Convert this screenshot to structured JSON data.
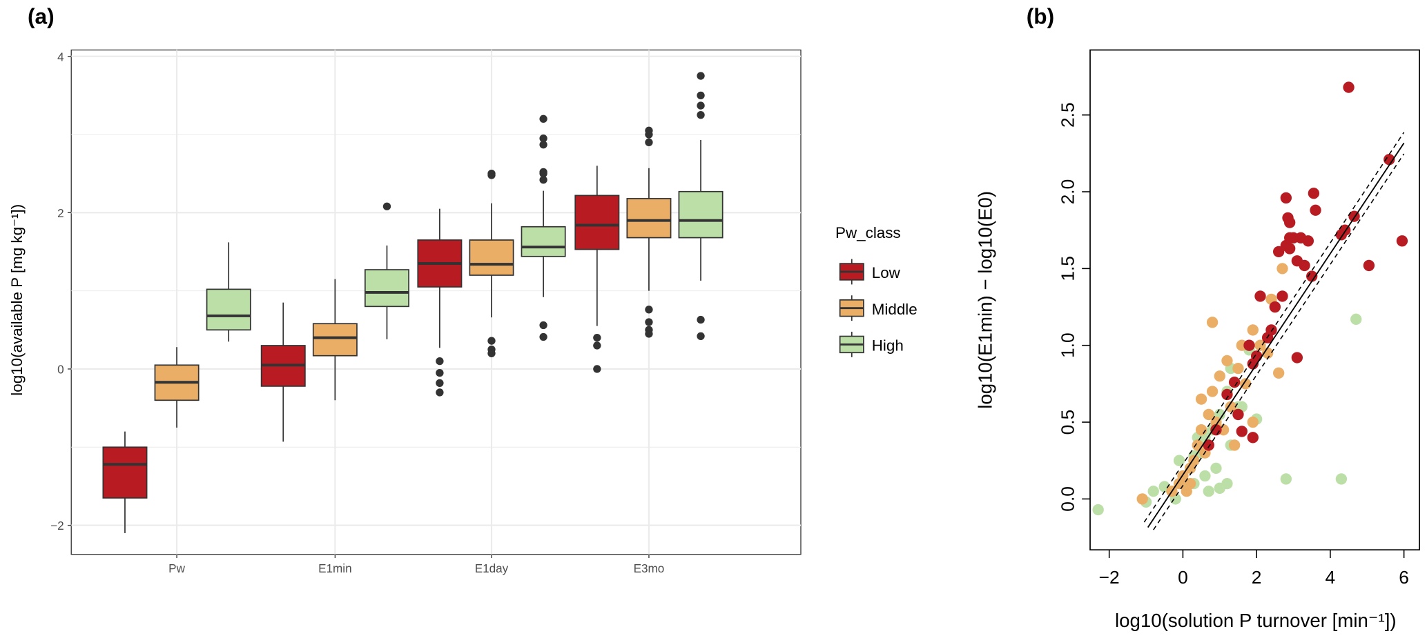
{
  "panel_labels": [
    "(a)",
    "(b)"
  ],
  "colors": {
    "Low": "#b81c22",
    "Middle": "#ebae66",
    "High": "#bbdfa6",
    "outline": "#333333",
    "grid": "#ebebeb"
  },
  "chart_data": [
    {
      "type": "box",
      "title": "(a)",
      "xlabel": "",
      "ylabel": "log10(available P [mg kg⁻¹])",
      "ylim": [
        -2.4,
        4.1
      ],
      "yticks": [
        -2,
        0,
        2,
        4
      ],
      "categories": [
        "Pw",
        "E1min",
        "E1day",
        "E3mo"
      ],
      "legend": {
        "title": "Pw_class",
        "entries": [
          "Low",
          "Middle",
          "High"
        ],
        "position": "right"
      },
      "series": [
        {
          "name": "Low",
          "boxes": [
            {
              "min": -2.1,
              "q1": -1.65,
              "median": -1.22,
              "q3": -1.0,
              "max": -0.8,
              "outliers": []
            },
            {
              "min": -0.93,
              "q1": -0.22,
              "median": 0.05,
              "q3": 0.3,
              "max": 0.85,
              "outliers": []
            },
            {
              "min": 0.27,
              "q1": 1.05,
              "median": 1.35,
              "q3": 1.65,
              "max": 2.05,
              "outliers": [
                0.1,
                -0.05,
                -0.18,
                -0.3
              ]
            },
            {
              "min": 0.55,
              "q1": 1.53,
              "median": 1.84,
              "q3": 2.22,
              "max": 2.6,
              "outliers": [
                0.4,
                0.3,
                0.0
              ]
            }
          ]
        },
        {
          "name": "Middle",
          "boxes": [
            {
              "min": -0.75,
              "q1": -0.4,
              "median": -0.17,
              "q3": 0.05,
              "max": 0.28,
              "outliers": []
            },
            {
              "min": -0.4,
              "q1": 0.17,
              "median": 0.4,
              "q3": 0.58,
              "max": 1.15,
              "outliers": []
            },
            {
              "min": 0.66,
              "q1": 1.2,
              "median": 1.34,
              "q3": 1.65,
              "max": 2.12,
              "outliers": [
                2.5,
                2.48,
                0.36,
                0.25,
                0.2
              ]
            },
            {
              "min": 1.0,
              "q1": 1.68,
              "median": 1.9,
              "q3": 2.18,
              "max": 2.57,
              "outliers": [
                3.05,
                3.0,
                2.9,
                0.76,
                0.6,
                0.5,
                0.45
              ]
            }
          ]
        },
        {
          "name": "High",
          "boxes": [
            {
              "min": 0.35,
              "q1": 0.5,
              "median": 0.68,
              "q3": 1.02,
              "max": 1.62,
              "outliers": []
            },
            {
              "min": 0.38,
              "q1": 0.8,
              "median": 0.98,
              "q3": 1.27,
              "max": 1.58,
              "outliers": [
                2.08
              ]
            },
            {
              "min": 0.92,
              "q1": 1.44,
              "median": 1.56,
              "q3": 1.82,
              "max": 2.28,
              "outliers": [
                3.2,
                2.95,
                2.87,
                2.52,
                2.5,
                2.42,
                0.56,
                0.41
              ]
            },
            {
              "min": 1.13,
              "q1": 1.68,
              "median": 1.9,
              "q3": 2.27,
              "max": 2.93,
              "outliers": [
                3.75,
                3.5,
                3.37,
                3.25,
                0.63,
                0.42
              ]
            }
          ]
        }
      ]
    },
    {
      "type": "scatter",
      "title": "(b)",
      "xlabel": "log10(solution P turnover [min⁻¹])",
      "ylabel": "log10(E1min) − log10(E0)",
      "xlim": [
        -2.4,
        6.4
      ],
      "ylim": [
        -0.16,
        2.95
      ],
      "xticks": [
        "−2",
        "0",
        "2",
        "4",
        "6"
      ],
      "xtick_values": [
        -2,
        0,
        2,
        4,
        6
      ],
      "yticks": [
        "0.0",
        "0.5",
        "1.0",
        "1.5",
        "2.0",
        "2.5"
      ],
      "ytick_values": [
        0,
        0.5,
        1.0,
        1.5,
        2.0,
        2.5
      ],
      "fit": {
        "slope": 0.36,
        "intercept": 0.157,
        "ci_offset": 0.07,
        "x_range": [
          -0.95,
          6.0
        ]
      },
      "series": [
        {
          "name": "High",
          "points": [
            [
              -2.3,
              -0.07
            ],
            [
              -1.0,
              -0.02
            ],
            [
              -0.8,
              0.05
            ],
            [
              -0.5,
              0.08
            ],
            [
              -0.2,
              0.0
            ],
            [
              0.0,
              0.1
            ],
            [
              0.2,
              0.2
            ],
            [
              0.3,
              0.28
            ],
            [
              0.5,
              0.3
            ],
            [
              0.6,
              0.4
            ],
            [
              0.8,
              0.45
            ],
            [
              1.0,
              0.55
            ],
            [
              1.2,
              0.7
            ],
            [
              1.3,
              0.85
            ],
            [
              1.8,
              0.97
            ],
            [
              1.5,
              0.6
            ],
            [
              2.0,
              0.52
            ],
            [
              1.3,
              0.35
            ],
            [
              0.9,
              0.2
            ],
            [
              0.6,
              0.15
            ],
            [
              1.2,
              0.1
            ],
            [
              0.7,
              0.05
            ],
            [
              -0.1,
              0.25
            ],
            [
              2.8,
              0.13
            ],
            [
              4.3,
              0.13
            ],
            [
              4.7,
              1.17
            ],
            [
              1.0,
              0.07
            ],
            [
              0.4,
              0.4
            ],
            [
              1.6,
              0.6
            ],
            [
              0.3,
              0.1
            ]
          ]
        },
        {
          "name": "Middle",
          "points": [
            [
              -1.1,
              0.0
            ],
            [
              2.7,
              1.5
            ],
            [
              2.4,
              1.3
            ],
            [
              2.5,
              1.25
            ],
            [
              0.8,
              1.15
            ],
            [
              1.9,
              1.1
            ],
            [
              1.6,
              1.0
            ],
            [
              2.1,
              1.0
            ],
            [
              1.2,
              0.9
            ],
            [
              1.5,
              0.85
            ],
            [
              2.6,
              0.82
            ],
            [
              1.0,
              0.8
            ],
            [
              0.8,
              0.7
            ],
            [
              1.3,
              0.6
            ],
            [
              0.7,
              0.55
            ],
            [
              0.9,
              0.5
            ],
            [
              0.5,
              0.45
            ],
            [
              1.1,
              0.45
            ],
            [
              0.4,
              0.35
            ],
            [
              0.6,
              0.3
            ],
            [
              0.3,
              0.25
            ],
            [
              0.2,
              0.2
            ],
            [
              0.0,
              0.15
            ],
            [
              -0.1,
              0.1
            ],
            [
              0.1,
              0.05
            ],
            [
              1.9,
              0.5
            ],
            [
              1.4,
              0.35
            ],
            [
              0.5,
              0.65
            ],
            [
              1.7,
              0.75
            ],
            [
              2.3,
              0.95
            ],
            [
              -0.3,
              0.05
            ],
            [
              0.2,
              0.1
            ]
          ]
        },
        {
          "name": "Low",
          "points": [
            [
              4.5,
              2.68
            ],
            [
              5.6,
              2.21
            ],
            [
              5.95,
              1.68
            ],
            [
              5.05,
              1.52
            ],
            [
              4.65,
              1.84
            ],
            [
              4.3,
              1.72
            ],
            [
              4.4,
              1.75
            ],
            [
              3.55,
              1.99
            ],
            [
              3.6,
              1.88
            ],
            [
              2.8,
              1.96
            ],
            [
              2.85,
              1.83
            ],
            [
              2.9,
              1.8
            ],
            [
              3.2,
              1.7
            ],
            [
              3.0,
              1.7
            ],
            [
              2.8,
              1.65
            ],
            [
              2.6,
              1.61
            ],
            [
              2.9,
              1.63
            ],
            [
              3.1,
              1.55
            ],
            [
              3.3,
              1.52
            ],
            [
              3.4,
              1.68
            ],
            [
              3.5,
              1.45
            ],
            [
              2.7,
              1.32
            ],
            [
              2.1,
              1.32
            ],
            [
              2.4,
              1.1
            ],
            [
              3.1,
              0.92
            ],
            [
              2.3,
              1.05
            ],
            [
              2.0,
              0.93
            ],
            [
              1.9,
              0.88
            ],
            [
              1.8,
              1.0
            ],
            [
              1.4,
              0.76
            ],
            [
              1.2,
              0.68
            ],
            [
              1.5,
              0.55
            ],
            [
              0.9,
              0.45
            ],
            [
              1.6,
              0.44
            ],
            [
              1.9,
              0.4
            ],
            [
              0.7,
              0.35
            ],
            [
              2.9,
              1.7
            ],
            [
              2.5,
              1.25
            ]
          ]
        }
      ]
    }
  ]
}
